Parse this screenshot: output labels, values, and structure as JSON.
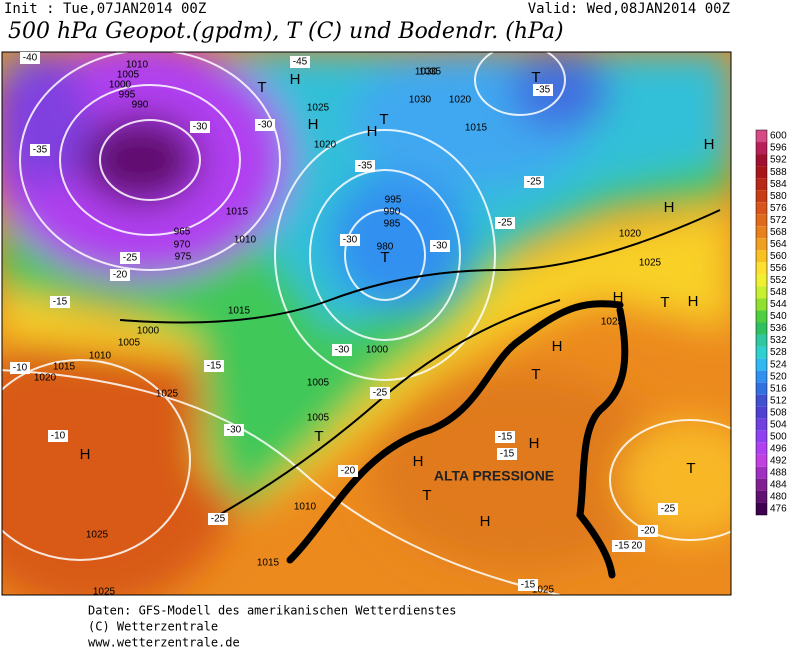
{
  "header": {
    "init": "Init : Tue,07JAN2014 00Z",
    "valid": "Valid: Wed,08JAN2014 00Z",
    "title": "500 hPa Geopot.(gpdm), T (C) und Bodendr. (hPa)"
  },
  "map": {
    "annotation": "ALTA PRESSIONE",
    "centers": [
      "T",
      "H",
      "H",
      "H",
      "T",
      "T",
      "H",
      "H",
      "T",
      "H",
      "T",
      "H",
      "H",
      "T",
      "H",
      "T",
      "H",
      "T",
      "T",
      "H",
      "H"
    ],
    "isobar_labels": [
      "1010",
      "1005",
      "1000",
      "995",
      "990",
      "1035",
      "1020",
      "1030",
      "1015",
      "1025",
      "1020",
      "1015",
      "995",
      "990",
      "985",
      "980",
      "1000",
      "975",
      "970",
      "965",
      "1010",
      "1015",
      "1005",
      "1000",
      "1010",
      "1015",
      "1020",
      "1025",
      "1005",
      "1005",
      "1010",
      "1015",
      "1025",
      "1025",
      "1020",
      "1025",
      "1030",
      "1025",
      "1025"
    ],
    "temp_labels": [
      "-45",
      "-40",
      "-35",
      "-30",
      "-35",
      "-30",
      "-35",
      "-25",
      "-30",
      "-25",
      "-30",
      "-30",
      "-25",
      "-20",
      "-15",
      "-10",
      "-10",
      "-15",
      "-20",
      "-25",
      "-30",
      "-25",
      "-20",
      "-15",
      "-15",
      "-20",
      "-25",
      "-15",
      "-15"
    ]
  },
  "colorbar": {
    "labels": [
      "600",
      "596",
      "592",
      "588",
      "584",
      "580",
      "576",
      "572",
      "568",
      "564",
      "560",
      "556",
      "552",
      "548",
      "544",
      "540",
      "536",
      "532",
      "528",
      "524",
      "520",
      "516",
      "512",
      "508",
      "504",
      "500",
      "496",
      "492",
      "488",
      "484",
      "480",
      "476"
    ],
    "colors": [
      "#d64a86",
      "#b8205a",
      "#a01030",
      "#a8161c",
      "#b82818",
      "#c83c14",
      "#d8541a",
      "#e06a1c",
      "#e8801e",
      "#f0a020",
      "#f8c020",
      "#ffe030",
      "#f0f030",
      "#c8f030",
      "#90e030",
      "#50d040",
      "#30c060",
      "#30c8a0",
      "#30d0d0",
      "#30b8f0",
      "#3090f0",
      "#3070e0",
      "#4050d0",
      "#5040d0",
      "#7040e0",
      "#9040f0",
      "#b040f0",
      "#c040e0",
      "#a030c0",
      "#802090",
      "#601070",
      "#400050"
    ]
  },
  "footer": [
    "Daten: GFS-Modell des amerikanischen Wetterdienstes",
    "(C) Wetterzentrale",
    "www.wetterzentrale.de"
  ]
}
